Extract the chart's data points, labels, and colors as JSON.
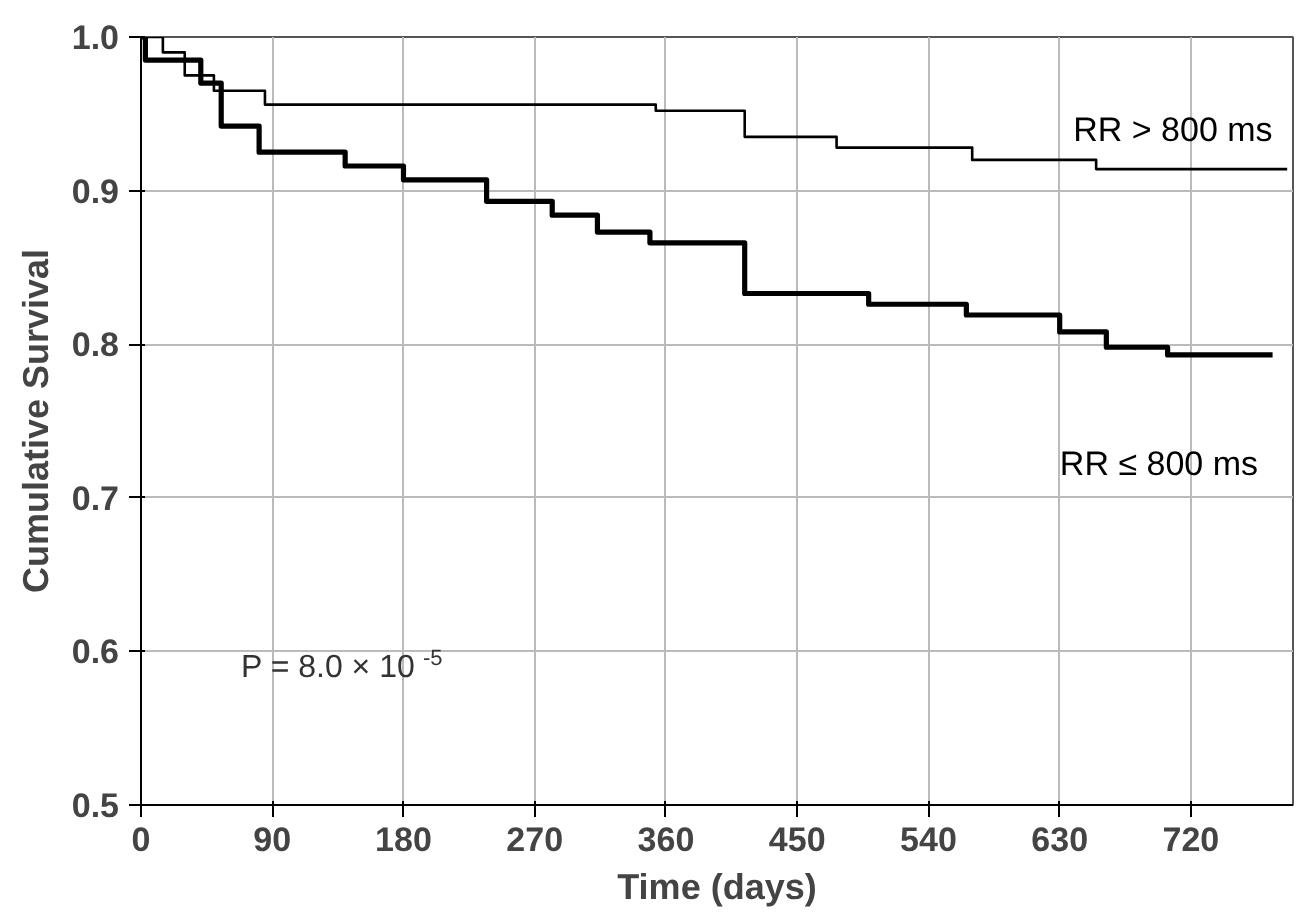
{
  "chart_data": {
    "type": "step",
    "xlabel": "Time (days)",
    "ylabel": "Cumulative Survival",
    "xlim": [
      0,
      790
    ],
    "ylim": [
      0.5,
      1.0
    ],
    "xticks": [
      0,
      90,
      180,
      270,
      360,
      450,
      540,
      630,
      720
    ],
    "yticks": [
      {
        "value": 0.5,
        "label": "0.5"
      },
      {
        "value": 0.6,
        "label": "0.6"
      },
      {
        "value": 0.7,
        "label": "0.7"
      },
      {
        "value": 0.8,
        "label": "0.8"
      },
      {
        "value": 0.9,
        "label": "0.9"
      },
      {
        "value": 1.0,
        "label": "1.0"
      }
    ],
    "grid": true,
    "marker": "none",
    "line_style": "solid",
    "series": [
      {
        "name": "RR > 800 ms",
        "color": "#000000",
        "x": [
          0,
          15,
          30,
          50,
          85,
          353,
          414,
          477,
          570,
          655,
          786
        ],
        "values": [
          1.0,
          0.99,
          0.975,
          0.965,
          0.956,
          0.952,
          0.935,
          0.928,
          0.92,
          0.914,
          0.914
        ]
      },
      {
        "name": "RR ≤ 800 ms",
        "color": "#000000",
        "x": [
          0,
          3,
          41,
          55,
          81,
          140,
          180,
          237,
          282,
          313,
          349,
          414,
          499,
          566,
          630,
          662,
          704,
          776
        ],
        "values": [
          1.0,
          0.985,
          0.97,
          0.942,
          0.925,
          0.916,
          0.907,
          0.893,
          0.884,
          0.873,
          0.866,
          0.833,
          0.826,
          0.819,
          0.808,
          0.798,
          0.793,
          0.793
        ]
      }
    ],
    "annotations": [
      "P = 8.0 × 10$^{-5}$"
    ]
  }
}
